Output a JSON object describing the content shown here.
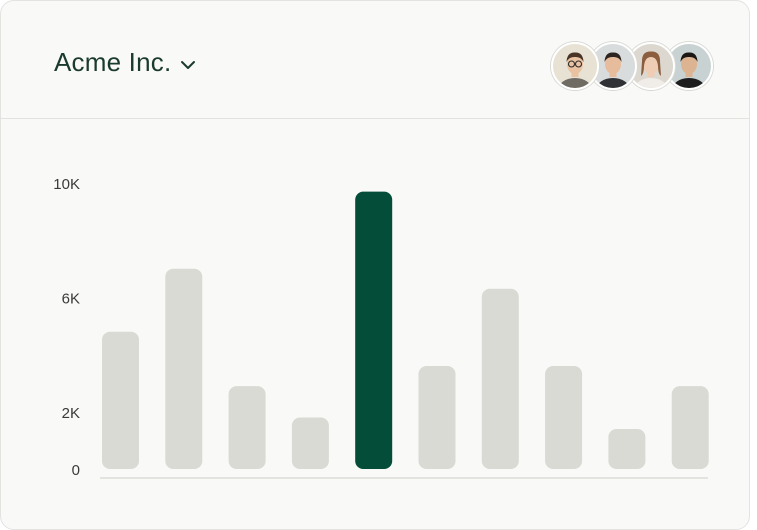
{
  "header": {
    "company_name": "Acme Inc.",
    "dropdown_icon": "chevron-down-icon",
    "avatars": [
      {
        "name": "avatar-1",
        "bg": "#e7e2d3",
        "skin": "#e9c2a2",
        "hair": "#4a3426",
        "shirt": "#6f6a62",
        "glasses": true
      },
      {
        "name": "avatar-2",
        "bg": "#d9dcdc",
        "skin": "#e6bc9c",
        "hair": "#2c2420",
        "shirt": "#2f3135",
        "glasses": false
      },
      {
        "name": "avatar-3",
        "bg": "#ddd8cf",
        "skin": "#efcdb4",
        "hair": "#8a5e3e",
        "shirt": "#f0ede8",
        "glasses": false
      },
      {
        "name": "avatar-4",
        "bg": "#c8d2d2",
        "skin": "#dcb491",
        "hair": "#1b1715",
        "shirt": "#1d1d1d",
        "glasses": false
      }
    ]
  },
  "chart_data": {
    "type": "bar",
    "values": [
      4800,
      7000,
      2900,
      1800,
      9700,
      3600,
      6300,
      3600,
      1400,
      2900
    ],
    "highlight_index": 4,
    "ylim": [
      0,
      10000
    ],
    "yticks": [
      0,
      2000,
      6000,
      10000
    ],
    "ytick_labels": [
      "0",
      "2K",
      "6K",
      "10K"
    ],
    "grid": false,
    "colors": {
      "bar": "#d9dad4",
      "highlight": "#044d39",
      "baseline": "#dcdcd8"
    }
  }
}
